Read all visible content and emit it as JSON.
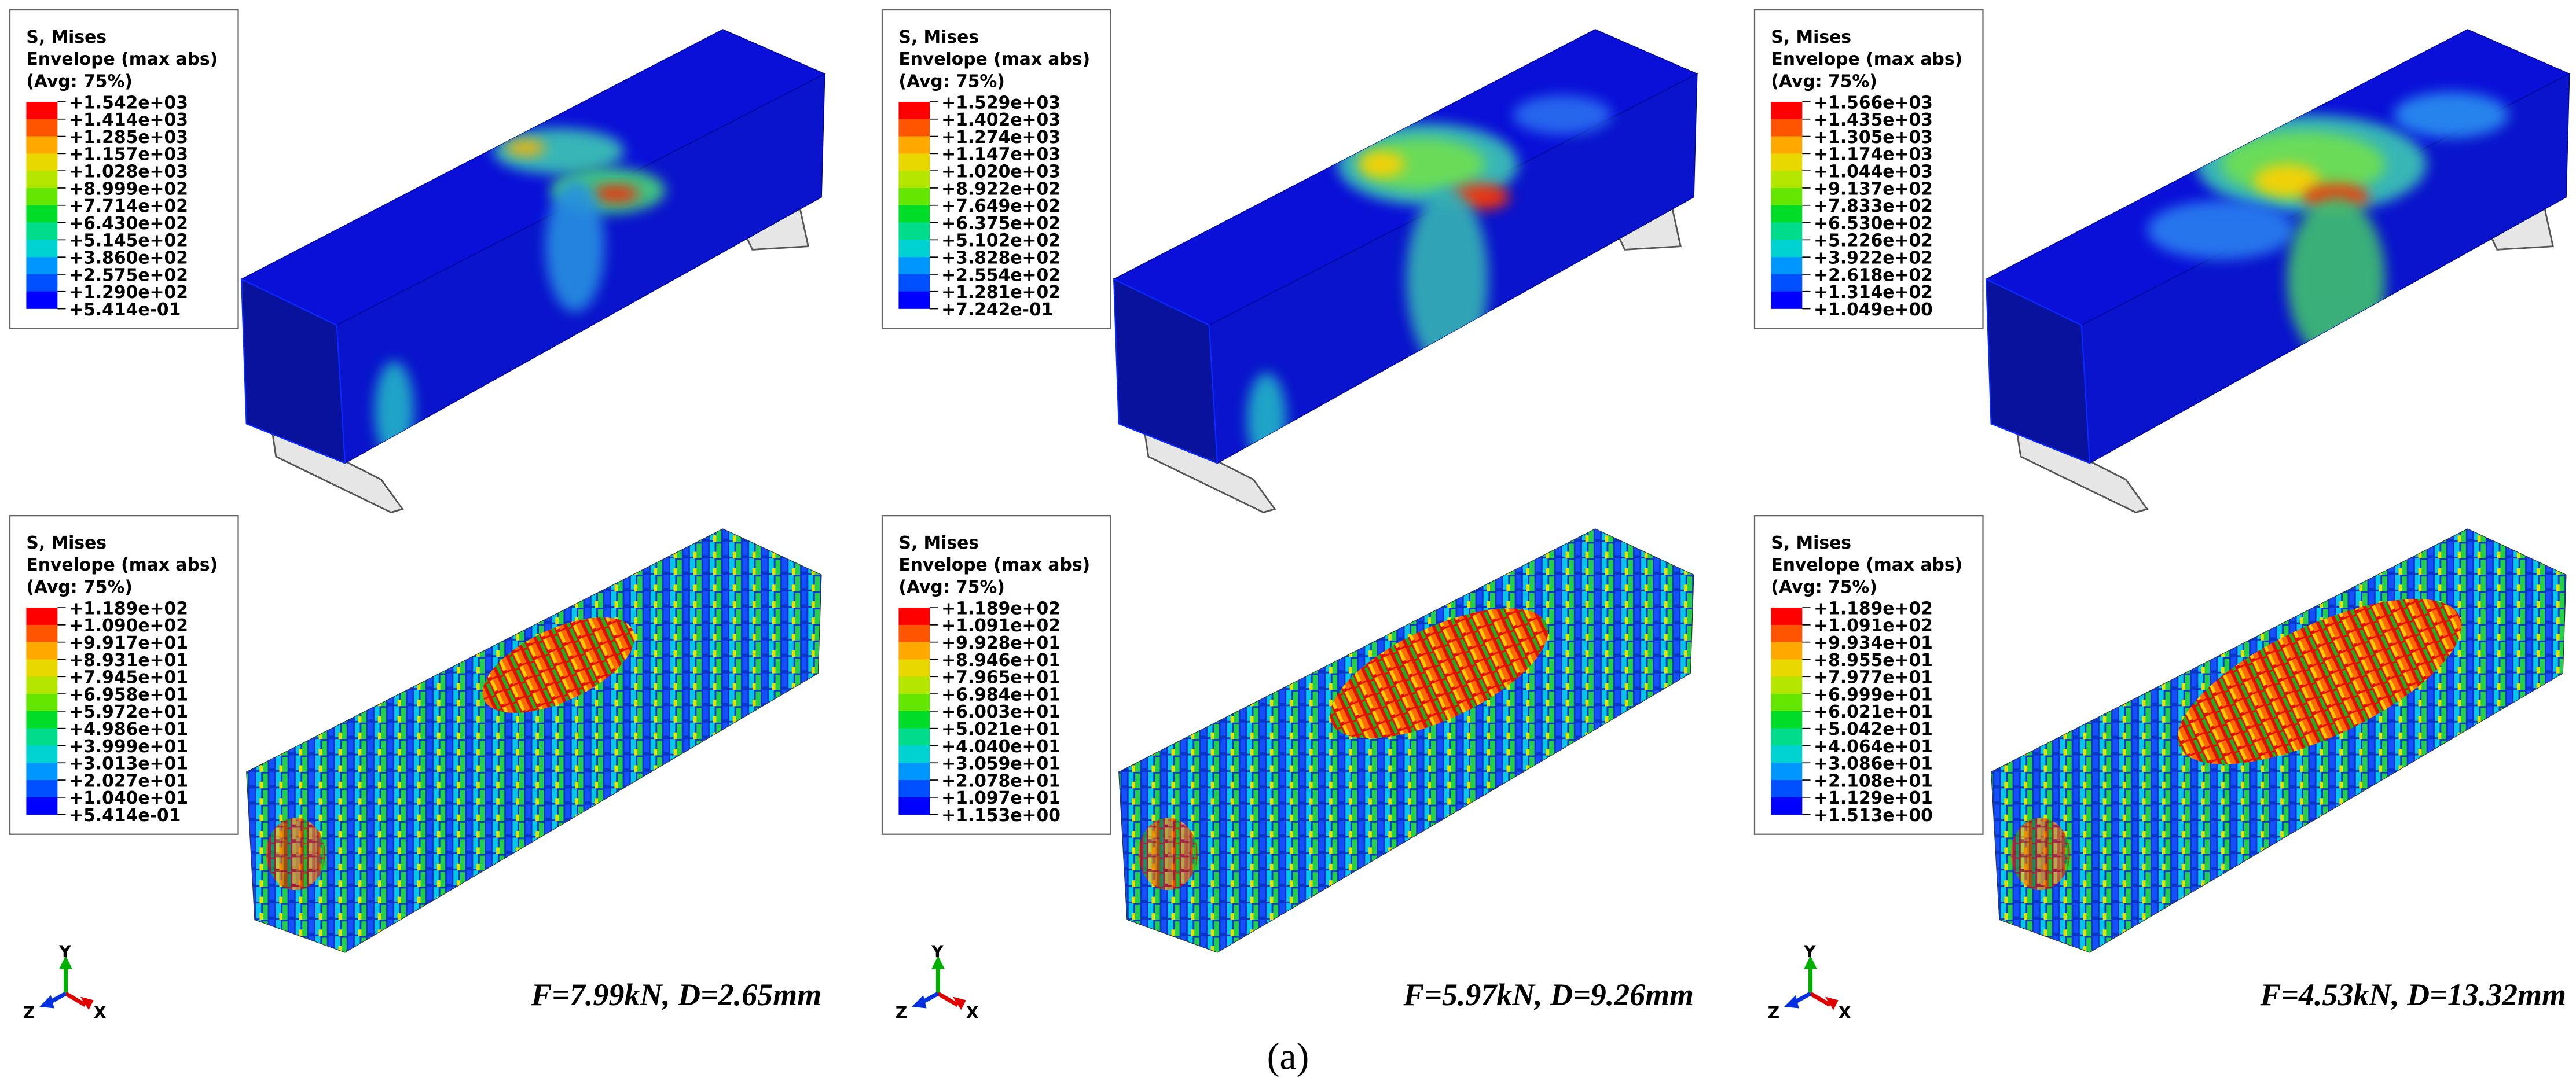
{
  "columns": [
    {
      "top": {
        "title": [
          "S, Mises",
          "Envelope (max abs)",
          "(Avg: 75%)"
        ],
        "values": [
          "+1.542e+03",
          "+1.414e+03",
          "+1.285e+03",
          "+1.157e+03",
          "+1.028e+03",
          "+8.999e+02",
          "+7.714e+02",
          "+6.430e+02",
          "+5.145e+02",
          "+3.860e+02",
          "+2.575e+02",
          "+1.290e+02",
          "+5.414e-01"
        ]
      },
      "bottom": {
        "title": [
          "S, Mises",
          "Envelope (max abs)",
          "(Avg: 75%)"
        ],
        "values": [
          "+1.189e+02",
          "+1.090e+02",
          "+9.917e+01",
          "+8.931e+01",
          "+7.945e+01",
          "+6.958e+01",
          "+5.972e+01",
          "+4.986e+01",
          "+3.999e+01",
          "+3.013e+01",
          "+2.027e+01",
          "+1.040e+01",
          "+5.414e-01"
        ]
      },
      "load": "F=7.99kN, D=2.65mm"
    },
    {
      "top": {
        "title": [
          "S, Mises",
          "Envelope (max abs)",
          "(Avg: 75%)"
        ],
        "values": [
          "+1.529e+03",
          "+1.402e+03",
          "+1.274e+03",
          "+1.147e+03",
          "+1.020e+03",
          "+8.922e+02",
          "+7.649e+02",
          "+6.375e+02",
          "+5.102e+02",
          "+3.828e+02",
          "+2.554e+02",
          "+1.281e+02",
          "+7.242e-01"
        ]
      },
      "bottom": {
        "title": [
          "S, Mises",
          "Envelope (max abs)",
          "(Avg: 75%)"
        ],
        "values": [
          "+1.189e+02",
          "+1.091e+02",
          "+9.928e+01",
          "+8.946e+01",
          "+7.965e+01",
          "+6.984e+01",
          "+6.003e+01",
          "+5.021e+01",
          "+4.040e+01",
          "+3.059e+01",
          "+2.078e+01",
          "+1.097e+01",
          "+1.153e+00"
        ]
      },
      "load": "F=5.97kN, D=9.26mm"
    },
    {
      "top": {
        "title": [
          "S, Mises",
          "Envelope (max abs)",
          "(Avg: 75%)"
        ],
        "values": [
          "+1.566e+03",
          "+1.435e+03",
          "+1.305e+03",
          "+1.174e+03",
          "+1.044e+03",
          "+9.137e+02",
          "+7.833e+02",
          "+6.530e+02",
          "+5.226e+02",
          "+3.922e+02",
          "+2.618e+02",
          "+1.314e+02",
          "+1.049e+00"
        ]
      },
      "bottom": {
        "title": [
          "S, Mises",
          "Envelope (max abs)",
          "(Avg: 75%)"
        ],
        "values": [
          "+1.189e+02",
          "+1.091e+02",
          "+9.934e+01",
          "+8.955e+01",
          "+7.977e+01",
          "+6.999e+01",
          "+6.021e+01",
          "+5.042e+01",
          "+4.064e+01",
          "+3.086e+01",
          "+2.108e+01",
          "+1.129e+01",
          "+1.513e+00"
        ]
      },
      "load": "F=4.53kN, D=13.32mm"
    }
  ],
  "triad": {
    "y": "Y",
    "z": "Z",
    "x": "X"
  },
  "caption": "(a)"
}
